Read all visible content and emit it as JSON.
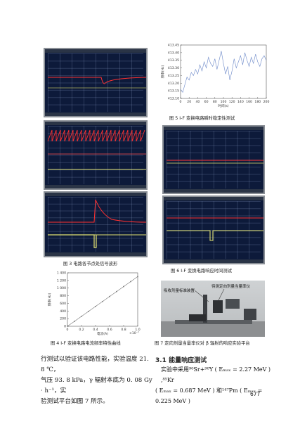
{
  "figure3": {
    "caption": "图 3   电路各节点处信号波形"
  },
  "figure4": {
    "caption": "图 4   I-F 变换电路电流频率特性曲线",
    "chart_data": {
      "type": "line",
      "xlabel": "电流(A)",
      "ylabel": "频率(Hz)",
      "x_multiplier": "×10⁻⁷",
      "xlim": [
        0,
        1.0
      ],
      "ylim": [
        0,
        1400
      ],
      "x_ticks": [
        "0",
        "0.2",
        "0.4",
        "0.6",
        "0.8",
        "1.0"
      ],
      "y_ticks": [
        "0",
        "200",
        "400",
        "600",
        "800",
        "1 000",
        "1 200",
        "1 400"
      ],
      "x": [
        0.0,
        0.1,
        0.2,
        0.3,
        0.4,
        0.5,
        0.6,
        0.7,
        0.8,
        0.9,
        1.0
      ],
      "values": [
        0,
        130,
        260,
        390,
        520,
        650,
        780,
        910,
        1040,
        1170,
        1300
      ]
    }
  },
  "figure5": {
    "caption": "图 5   I-F 变换电路瞬时稳定性测试",
    "chart_data": {
      "type": "line",
      "xlabel": "时间(s)",
      "ylabel": "频率(Hz)",
      "xlim": [
        0,
        200
      ],
      "ylim": [
        413.1,
        413.45
      ],
      "x_ticks": [
        "0",
        "20",
        "40",
        "60",
        "80",
        "100",
        "120",
        "140",
        "160",
        "180",
        "200"
      ],
      "y_ticks": [
        "413.10",
        "413.15",
        "413.20",
        "413.25",
        "413.30",
        "413.35",
        "413.40",
        "413.45"
      ],
      "x": [
        0,
        5,
        10,
        15,
        20,
        25,
        30,
        35,
        40,
        45,
        50,
        55,
        60,
        65,
        70,
        75,
        80,
        85,
        90,
        95,
        100,
        105,
        110,
        115,
        120,
        125,
        130,
        135,
        140,
        145,
        150,
        155,
        160,
        165,
        170,
        175,
        180,
        185,
        190,
        195,
        200
      ],
      "values": [
        413.16,
        413.14,
        413.19,
        413.24,
        413.22,
        413.27,
        413.25,
        413.29,
        413.26,
        413.32,
        413.28,
        413.34,
        413.3,
        413.37,
        413.33,
        413.31,
        413.36,
        413.29,
        413.35,
        413.41,
        413.33,
        413.26,
        413.31,
        413.22,
        413.28,
        413.36,
        413.3,
        413.34,
        413.38,
        413.32,
        413.4,
        413.35,
        413.31,
        413.37,
        413.33,
        413.39,
        413.34,
        413.31,
        413.36,
        413.38,
        413.35
      ]
    }
  },
  "figure6": {
    "caption": "图 6   I-F 变换电路响应时间测试"
  },
  "figure7": {
    "caption": "图 7   定向剂量当量率仪对 β 辐射的响应实验平台",
    "label_left": "吸收剂量标准装置",
    "label_right": "待测定向剂量当量率仪"
  },
  "body_left": {
    "lines": [
      "行测试以验证该电路性能，实验温度 21. 8 ℃，",
      "气压 93. 8 kPa，γ 辐射本底为 0. 08 Gy · h⁻¹，实",
      "验测试平台如图 7 所示。"
    ]
  },
  "section": {
    "title": "3.1   能量响应测试",
    "lines": [
      "实验中采用⁹⁰Sr+⁹⁰Y ( Eₘₐₓ = 2.27 MeV ) ,⁸⁵Kr",
      "( Eₘₐₓ = 0.687 MeV ) 和¹⁴⁷Pm ( Eₘₐₓ = 0.225 MeV )"
    ]
  },
  "page_number": "677"
}
